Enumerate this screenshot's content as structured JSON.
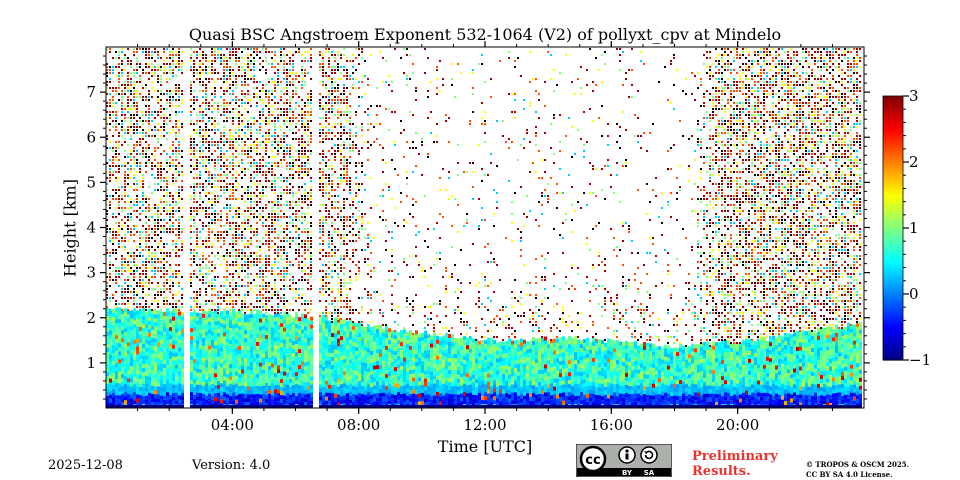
{
  "chart_data": {
    "type": "heatmap",
    "title": "Quasi BSC Angstroem Exponent 532-1064 (V2) of pollyxt_cpv at Mindelo",
    "xlabel": "Time [UTC]",
    "ylabel": "Height [km]",
    "x_ticks": [
      "04:00",
      "08:00",
      "12:00",
      "16:00",
      "20:00"
    ],
    "x_tick_hours": [
      4,
      8,
      12,
      16,
      20
    ],
    "xlim_hours": [
      0,
      24
    ],
    "y_ticks": [
      "1",
      "2",
      "3",
      "4",
      "5",
      "6",
      "7"
    ],
    "y_tick_values": [
      1,
      2,
      3,
      4,
      5,
      6,
      7
    ],
    "ylim_km": [
      0,
      8
    ],
    "colorbar": {
      "ticks": [
        "3",
        "2",
        "1",
        "0",
        "−1"
      ],
      "tick_values": [
        3,
        2,
        1,
        0,
        -1
      ],
      "range": [
        -1,
        3
      ],
      "colormap": "jet"
    },
    "data_gaps_hours": [
      [
        2.5,
        2.65
      ],
      [
        6.55,
        6.7
      ]
    ],
    "layer_top_km": [
      {
        "hour": 0,
        "top": 2.2
      },
      {
        "hour": 4,
        "top": 2.15
      },
      {
        "hour": 6.5,
        "top": 2.05
      },
      {
        "hour": 9,
        "top": 1.75
      },
      {
        "hour": 12,
        "top": 1.5
      },
      {
        "hour": 15,
        "top": 1.55
      },
      {
        "hour": 18,
        "top": 1.35
      },
      {
        "hour": 21,
        "top": 1.55
      },
      {
        "hour": 24,
        "top": 1.9
      }
    ],
    "layer_angstroem_typical": 0.7
  },
  "footer": {
    "date": "2025-12-08",
    "version": "Version: 4.0",
    "preliminary_line1": "Preliminary",
    "preliminary_line2": "Results.",
    "license_line1": "© TROPOS & OSCM 2025.",
    "license_line2": "CC BY SA 4.0 License.",
    "cc_text": "cc",
    "cc_by": "BY",
    "cc_sa": "SA"
  },
  "colors": {
    "preliminary": "#e8342f",
    "cc_badge_bg": "#abb1aa",
    "cc_badge_dark": "#000000"
  }
}
